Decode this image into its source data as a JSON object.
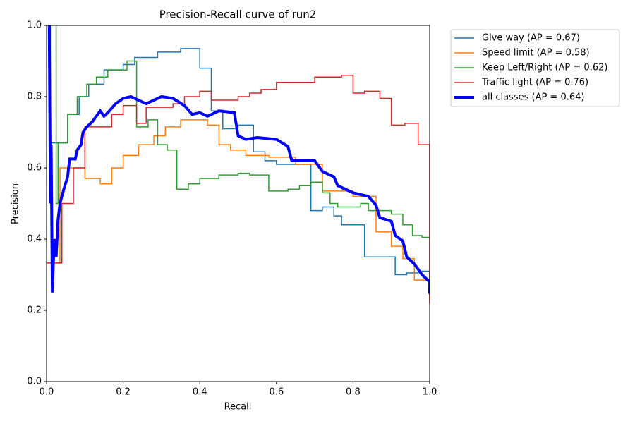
{
  "chart_data": {
    "type": "line",
    "title": "Precision-Recall curve of run2",
    "x_label": "Recall",
    "y_label": "Precision",
    "xlim": [
      0,
      1
    ],
    "ylim": [
      0,
      1
    ],
    "xticks": [
      {
        "value": 0,
        "label": "0.0"
      },
      0.2,
      0.4,
      0.6,
      0.8,
      {
        "value": 1,
        "label": "1.0"
      }
    ],
    "yticks": [
      {
        "value": 0,
        "label": "0.0"
      },
      0.2,
      0.4,
      0.6,
      0.8,
      {
        "value": 1,
        "label": "1.0"
      }
    ],
    "grid": false,
    "legend": "outside-upper-right",
    "series": [
      {
        "name": "Give way (AP = 0.67)",
        "color": "#1f77b4",
        "linewidth": 1.5,
        "x": [
          0.01,
          0.01,
          0.055,
          0.055,
          0.085,
          0.085,
          0.11,
          0.11,
          0.15,
          0.15,
          0.2,
          0.2,
          0.23,
          0.23,
          0.29,
          0.29,
          0.35,
          0.35,
          0.4,
          0.4,
          0.43,
          0.43,
          0.46,
          0.46,
          0.5,
          0.5,
          0.54,
          0.54,
          0.57,
          0.57,
          0.6,
          0.6,
          0.69,
          0.69,
          0.72,
          0.72,
          0.75,
          0.75,
          0.77,
          0.77,
          0.83,
          0.83,
          0.91,
          0.91,
          0.94,
          0.94,
          0.97,
          0.97,
          1.0,
          1.0
        ],
        "values": [
          1.0,
          0.67,
          0.67,
          0.75,
          0.75,
          0.8,
          0.8,
          0.835,
          0.835,
          0.875,
          0.875,
          0.89,
          0.89,
          0.91,
          0.91,
          0.925,
          0.925,
          0.935,
          0.935,
          0.88,
          0.88,
          0.76,
          0.76,
          0.71,
          0.71,
          0.72,
          0.72,
          0.645,
          0.645,
          0.62,
          0.62,
          0.61,
          0.61,
          0.48,
          0.48,
          0.49,
          0.49,
          0.465,
          0.465,
          0.44,
          0.44,
          0.35,
          0.35,
          0.3,
          0.3,
          0.305,
          0.305,
          0.31,
          0.31,
          0.25
        ]
      },
      {
        "name": "Speed limit (AP = 0.58)",
        "color": "#ff7f0e",
        "linewidth": 1.5,
        "x": [
          0.0,
          0.035,
          0.035,
          0.1,
          0.1,
          0.14,
          0.14,
          0.17,
          0.17,
          0.2,
          0.2,
          0.24,
          0.24,
          0.28,
          0.28,
          0.31,
          0.31,
          0.35,
          0.35,
          0.42,
          0.42,
          0.45,
          0.45,
          0.48,
          0.48,
          0.52,
          0.52,
          0.58,
          0.58,
          0.65,
          0.65,
          0.72,
          0.72,
          0.8,
          0.8,
          0.86,
          0.86,
          0.9,
          0.9,
          0.93,
          0.93,
          0.96,
          0.96,
          1.0,
          1.0
        ],
        "values": [
          0.333,
          0.333,
          0.6,
          0.6,
          0.57,
          0.57,
          0.555,
          0.555,
          0.6,
          0.6,
          0.635,
          0.635,
          0.665,
          0.665,
          0.69,
          0.69,
          0.715,
          0.715,
          0.735,
          0.735,
          0.72,
          0.72,
          0.665,
          0.665,
          0.65,
          0.65,
          0.635,
          0.635,
          0.63,
          0.63,
          0.61,
          0.61,
          0.535,
          0.535,
          0.52,
          0.52,
          0.42,
          0.42,
          0.38,
          0.38,
          0.345,
          0.345,
          0.285,
          0.285,
          0.23
        ]
      },
      {
        "name": "Keep Left/Right (AP = 0.62)",
        "color": "#2ca02c",
        "linewidth": 1.5,
        "x": [
          0.025,
          0.025,
          0.03,
          0.03,
          0.055,
          0.055,
          0.08,
          0.08,
          0.105,
          0.105,
          0.13,
          0.13,
          0.16,
          0.16,
          0.21,
          0.21,
          0.235,
          0.235,
          0.265,
          0.265,
          0.29,
          0.29,
          0.315,
          0.315,
          0.34,
          0.34,
          0.37,
          0.37,
          0.4,
          0.4,
          0.45,
          0.45,
          0.5,
          0.5,
          0.53,
          0.53,
          0.58,
          0.58,
          0.63,
          0.63,
          0.66,
          0.66,
          0.69,
          0.69,
          0.72,
          0.72,
          0.74,
          0.74,
          0.76,
          0.76,
          0.82,
          0.82,
          0.84,
          0.84,
          0.9,
          0.9,
          0.93,
          0.93,
          0.955,
          0.955,
          0.98,
          0.98,
          1.0
        ],
        "values": [
          1.0,
          0.5,
          0.5,
          0.67,
          0.67,
          0.75,
          0.75,
          0.8,
          0.8,
          0.835,
          0.835,
          0.855,
          0.855,
          0.875,
          0.875,
          0.9,
          0.9,
          0.715,
          0.715,
          0.735,
          0.735,
          0.665,
          0.665,
          0.65,
          0.65,
          0.54,
          0.54,
          0.555,
          0.555,
          0.57,
          0.57,
          0.58,
          0.58,
          0.585,
          0.585,
          0.58,
          0.58,
          0.535,
          0.535,
          0.54,
          0.54,
          0.55,
          0.55,
          0.56,
          0.56,
          0.53,
          0.53,
          0.5,
          0.5,
          0.49,
          0.49,
          0.5,
          0.5,
          0.48,
          0.48,
          0.47,
          0.47,
          0.44,
          0.44,
          0.41,
          0.41,
          0.405,
          0.405
        ]
      },
      {
        "name": "Traffic light (AP = 0.76)",
        "color": "#d62728",
        "linewidth": 1.5,
        "x": [
          0.0,
          0.04,
          0.04,
          0.07,
          0.07,
          0.1,
          0.1,
          0.17,
          0.17,
          0.2,
          0.2,
          0.235,
          0.235,
          0.26,
          0.26,
          0.33,
          0.33,
          0.36,
          0.36,
          0.4,
          0.4,
          0.43,
          0.43,
          0.5,
          0.5,
          0.53,
          0.53,
          0.56,
          0.56,
          0.6,
          0.6,
          0.7,
          0.7,
          0.77,
          0.77,
          0.8,
          0.8,
          0.83,
          0.83,
          0.87,
          0.87,
          0.9,
          0.9,
          0.935,
          0.935,
          0.97,
          0.97,
          1.0,
          1.0
        ],
        "values": [
          0.333,
          0.333,
          0.5,
          0.5,
          0.6,
          0.6,
          0.715,
          0.715,
          0.75,
          0.75,
          0.775,
          0.775,
          0.725,
          0.725,
          0.77,
          0.77,
          0.78,
          0.78,
          0.8,
          0.8,
          0.815,
          0.815,
          0.79,
          0.79,
          0.8,
          0.8,
          0.81,
          0.81,
          0.82,
          0.82,
          0.84,
          0.84,
          0.855,
          0.855,
          0.86,
          0.86,
          0.81,
          0.81,
          0.815,
          0.815,
          0.795,
          0.795,
          0.72,
          0.72,
          0.725,
          0.725,
          0.665,
          0.665,
          0.22
        ]
      },
      {
        "name": "all classes (AP = 0.64)",
        "color": "#0000ff",
        "linewidth": 4,
        "x": [
          0.007,
          0.01,
          0.012,
          0.015,
          0.02,
          0.025,
          0.03,
          0.035,
          0.045,
          0.055,
          0.06,
          0.075,
          0.08,
          0.09,
          0.095,
          0.105,
          0.12,
          0.14,
          0.15,
          0.16,
          0.18,
          0.2,
          0.22,
          0.24,
          0.26,
          0.3,
          0.33,
          0.36,
          0.38,
          0.4,
          0.42,
          0.45,
          0.49,
          0.5,
          0.52,
          0.55,
          0.6,
          0.63,
          0.64,
          0.7,
          0.72,
          0.75,
          0.76,
          0.8,
          0.84,
          0.86,
          0.87,
          0.9,
          0.91,
          0.93,
          0.94,
          0.96,
          0.98,
          1.0,
          1.0
        ],
        "values": [
          1.0,
          0.5,
          0.665,
          0.25,
          0.4,
          0.35,
          0.455,
          0.5,
          0.54,
          0.575,
          0.625,
          0.625,
          0.65,
          0.665,
          0.7,
          0.715,
          0.73,
          0.76,
          0.745,
          0.755,
          0.78,
          0.795,
          0.8,
          0.79,
          0.78,
          0.8,
          0.795,
          0.775,
          0.75,
          0.755,
          0.745,
          0.76,
          0.755,
          0.69,
          0.68,
          0.685,
          0.68,
          0.66,
          0.62,
          0.62,
          0.59,
          0.575,
          0.55,
          0.53,
          0.52,
          0.495,
          0.46,
          0.45,
          0.41,
          0.395,
          0.35,
          0.33,
          0.3,
          0.28,
          0.25
        ]
      }
    ]
  }
}
